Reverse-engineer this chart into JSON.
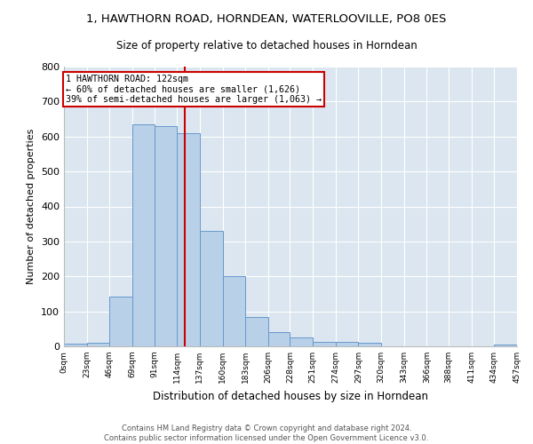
{
  "title": "1, HAWTHORN ROAD, HORNDEAN, WATERLOOVILLE, PO8 0ES",
  "subtitle": "Size of property relative to detached houses in Horndean",
  "xlabel": "Distribution of detached houses by size in Horndean",
  "ylabel": "Number of detached properties",
  "bar_color": "#b8d0e8",
  "bar_edge_color": "#6699cc",
  "background_color": "#dce6f0",
  "grid_color": "#ffffff",
  "annotation_line_color": "#cc0000",
  "annotation_box_color": "#cc0000",
  "property_size": 122,
  "annotation_text_line1": "1 HAWTHORN ROAD: 122sqm",
  "annotation_text_line2": "← 60% of detached houses are smaller (1,626)",
  "annotation_text_line3": "39% of semi-detached houses are larger (1,063) →",
  "footer_line1": "Contains HM Land Registry data © Crown copyright and database right 2024.",
  "footer_line2": "Contains public sector information licensed under the Open Government Licence v3.0.",
  "bins": [
    0,
    23,
    46,
    69,
    91,
    114,
    137,
    160,
    183,
    206,
    228,
    251,
    274,
    297,
    320,
    343,
    366,
    388,
    411,
    434,
    457
  ],
  "bin_labels": [
    "0sqm",
    "23sqm",
    "46sqm",
    "69sqm",
    "91sqm",
    "114sqm",
    "137sqm",
    "160sqm",
    "183sqm",
    "206sqm",
    "228sqm",
    "251sqm",
    "274sqm",
    "297sqm",
    "320sqm",
    "343sqm",
    "366sqm",
    "388sqm",
    "411sqm",
    "434sqm",
    "457sqm"
  ],
  "counts": [
    7,
    10,
    143,
    635,
    630,
    610,
    330,
    200,
    85,
    40,
    25,
    13,
    12,
    10,
    0,
    0,
    0,
    0,
    0,
    5
  ],
  "ylim": [
    0,
    800
  ],
  "yticks": [
    0,
    100,
    200,
    300,
    400,
    500,
    600,
    700,
    800
  ]
}
